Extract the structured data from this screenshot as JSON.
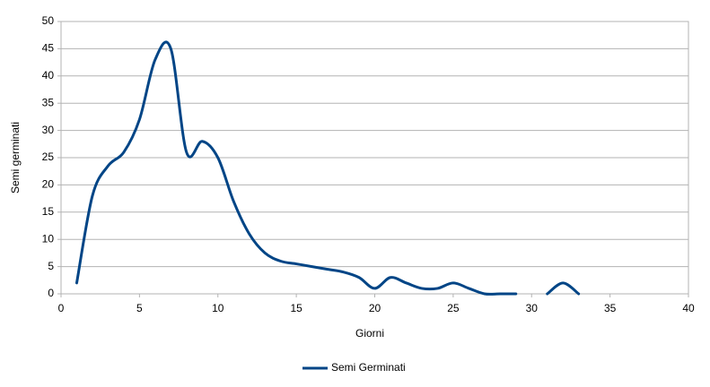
{
  "chart_data": {
    "type": "line",
    "x_label": "Giorni",
    "y_label": "Semi germinati",
    "x": [
      1,
      2,
      3,
      4,
      5,
      6,
      7,
      8,
      9,
      10,
      11,
      12,
      13,
      14,
      15,
      16,
      17,
      18,
      19,
      20,
      21,
      22,
      23,
      24,
      25,
      26,
      27,
      28,
      29,
      30,
      31,
      32,
      33
    ],
    "series": [
      {
        "name": "Semi Germinati",
        "color": "#004586",
        "values": [
          2,
          18,
          23.5,
          26,
          32,
          43,
          45,
          26,
          28,
          25,
          17,
          11,
          7.5,
          6,
          5.5,
          5,
          4.5,
          4,
          3,
          1,
          3,
          2,
          1,
          1,
          2,
          1,
          0,
          0,
          0,
          null,
          0,
          2,
          0
        ]
      }
    ],
    "xlim": [
      0,
      40
    ],
    "xticks": [
      0,
      5,
      10,
      15,
      20,
      25,
      30,
      35,
      40
    ],
    "ylim": [
      0,
      50
    ],
    "yticks": [
      0,
      5,
      10,
      15,
      20,
      25,
      30,
      35,
      40,
      45,
      50
    ],
    "grid": true,
    "legend": "bottom"
  }
}
